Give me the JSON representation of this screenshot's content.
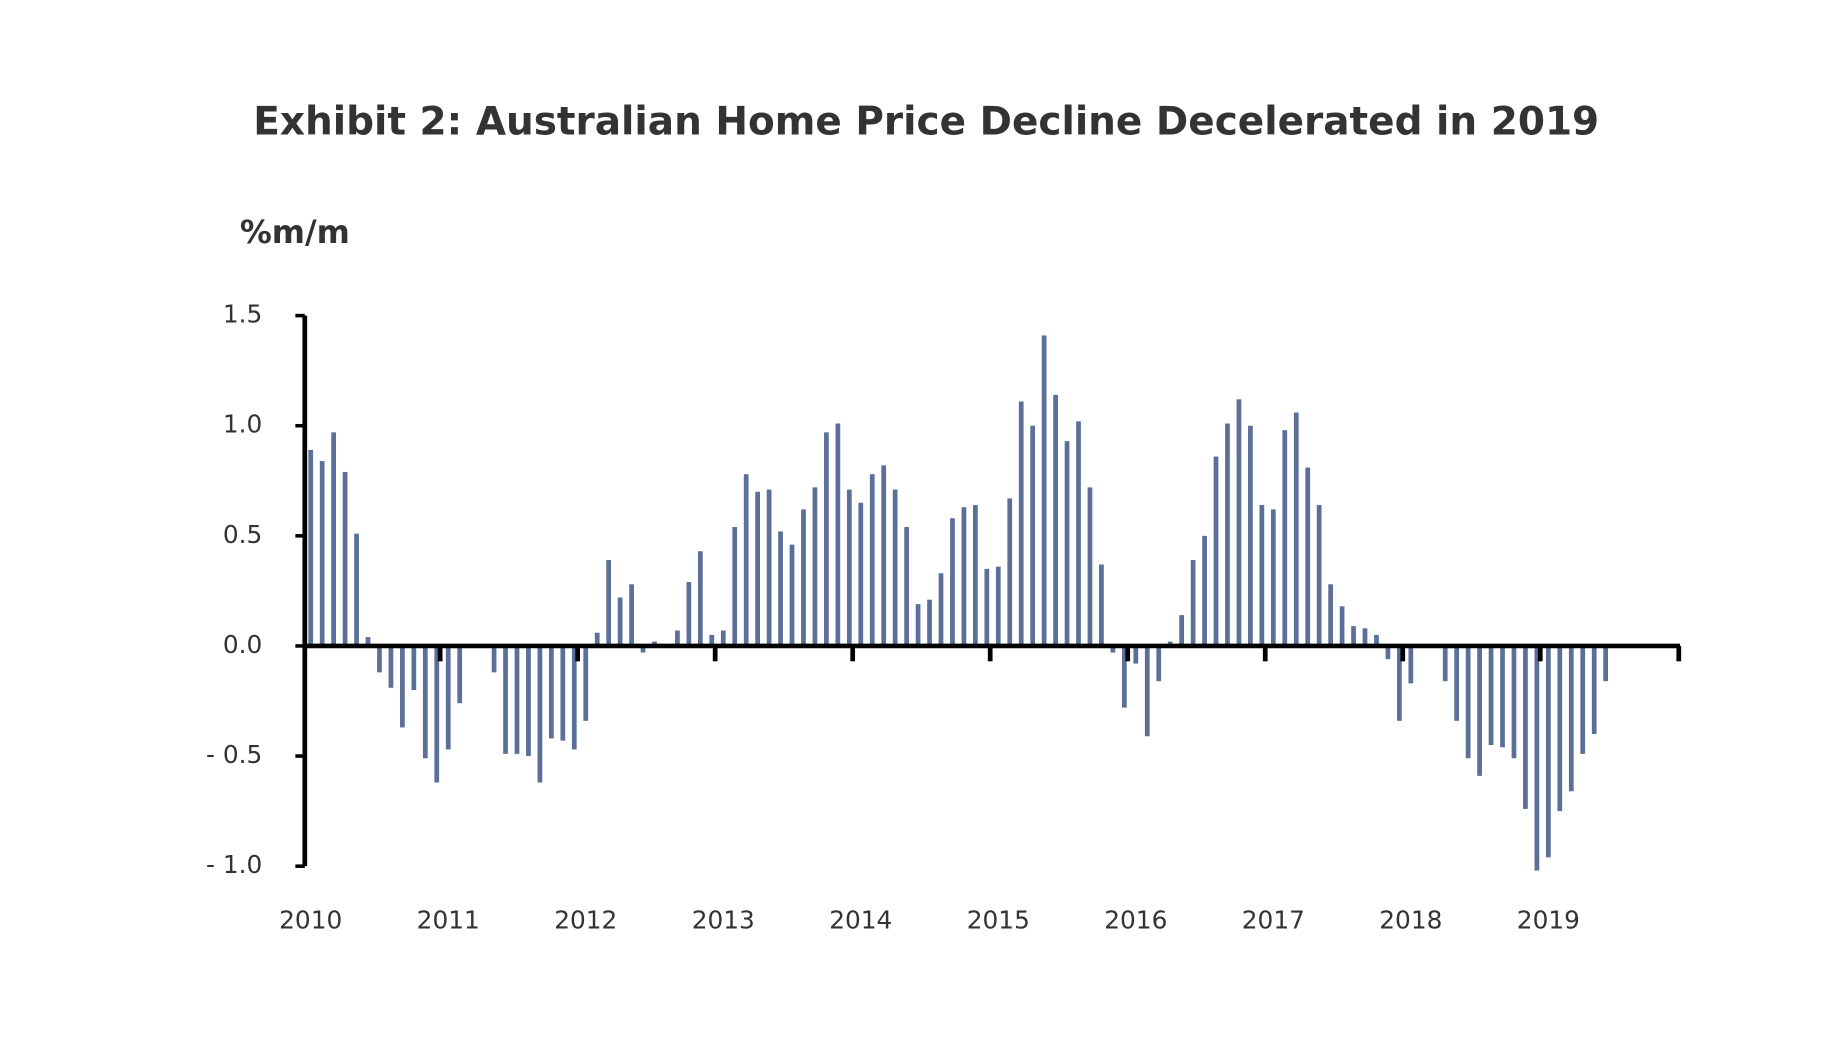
{
  "chart_data": {
    "type": "bar",
    "title": "Exhibit 2: Australian Home Price Decline Decelerated in 2019",
    "y_label": "%m/m",
    "color": "#5b6f98",
    "categories": [
      "2010",
      null,
      null,
      null,
      null,
      null,
      null,
      null,
      null,
      null,
      null,
      null,
      "2011",
      null,
      null,
      null,
      null,
      null,
      null,
      null,
      null,
      null,
      null,
      null,
      "2012",
      null,
      null,
      null,
      null,
      null,
      null,
      null,
      null,
      null,
      null,
      null,
      "2013",
      null,
      null,
      null,
      null,
      null,
      null,
      null,
      null,
      null,
      null,
      null,
      "2014",
      null,
      null,
      null,
      null,
      null,
      null,
      null,
      null,
      null,
      null,
      null,
      "2015",
      null,
      null,
      null,
      null,
      null,
      null,
      null,
      null,
      null,
      null,
      null,
      "2016",
      null,
      null,
      null,
      null,
      null,
      null,
      null,
      null,
      null,
      null,
      null,
      "2017",
      null,
      null,
      null,
      null,
      null,
      null,
      null,
      null,
      null,
      null,
      null,
      "2018",
      null,
      null,
      null,
      null,
      null,
      null,
      null,
      null,
      null,
      null,
      null,
      "2019",
      null,
      null,
      null,
      null,
      null
    ],
    "values": [
      0.89,
      0.84,
      0.97,
      0.79,
      0.51,
      0.04,
      -0.12,
      -0.19,
      -0.37,
      -0.2,
      -0.51,
      -0.62,
      -0.47,
      -0.26,
      0,
      0,
      -0.12,
      -0.49,
      -0.49,
      -0.5,
      -0.62,
      -0.42,
      -0.43,
      -0.47,
      -0.34,
      0.06,
      0.39,
      0.22,
      0.28,
      -0.03,
      0.02,
      0,
      0.07,
      0.29,
      0.43,
      0.05,
      0.07,
      0.54,
      0.78,
      0.7,
      0.71,
      0.52,
      0.46,
      0.62,
      0.72,
      0.97,
      1.01,
      0.71,
      0.65,
      0.78,
      0.82,
      0.71,
      0.54,
      0.19,
      0.21,
      0.33,
      0.58,
      0.63,
      0.64,
      0.35,
      0.36,
      0.67,
      1.11,
      1.0,
      1.41,
      1.14,
      0.93,
      1.02,
      0.72,
      0.37,
      -0.03,
      -0.28,
      -0.08,
      -0.41,
      -0.16,
      0.02,
      0.14,
      0.39,
      0.5,
      0.86,
      1.01,
      1.12,
      1.0,
      0.64,
      0.62,
      0.98,
      1.06,
      0.81,
      0.64,
      0.28,
      0.18,
      0.09,
      0.08,
      0.05,
      -0.06,
      -0.34,
      -0.17,
      0,
      0,
      -0.16,
      -0.34,
      -0.51,
      -0.59,
      -0.45,
      -0.46,
      -0.51,
      -0.74,
      -1.02,
      -0.96,
      -0.75,
      -0.66,
      -0.49,
      -0.4,
      -0.16
    ],
    "ylim": [
      -1.0,
      1.5
    ],
    "yticks": [
      1.5,
      {
        "value": 1.0,
        "label": "1.0"
      },
      0.5,
      {
        "value": 0.0,
        "label": "0.0"
      },
      {
        "value": -0.5,
        "label": "- 0.5"
      },
      {
        "value": -1.0,
        "label": "- 1.0"
      }
    ]
  }
}
